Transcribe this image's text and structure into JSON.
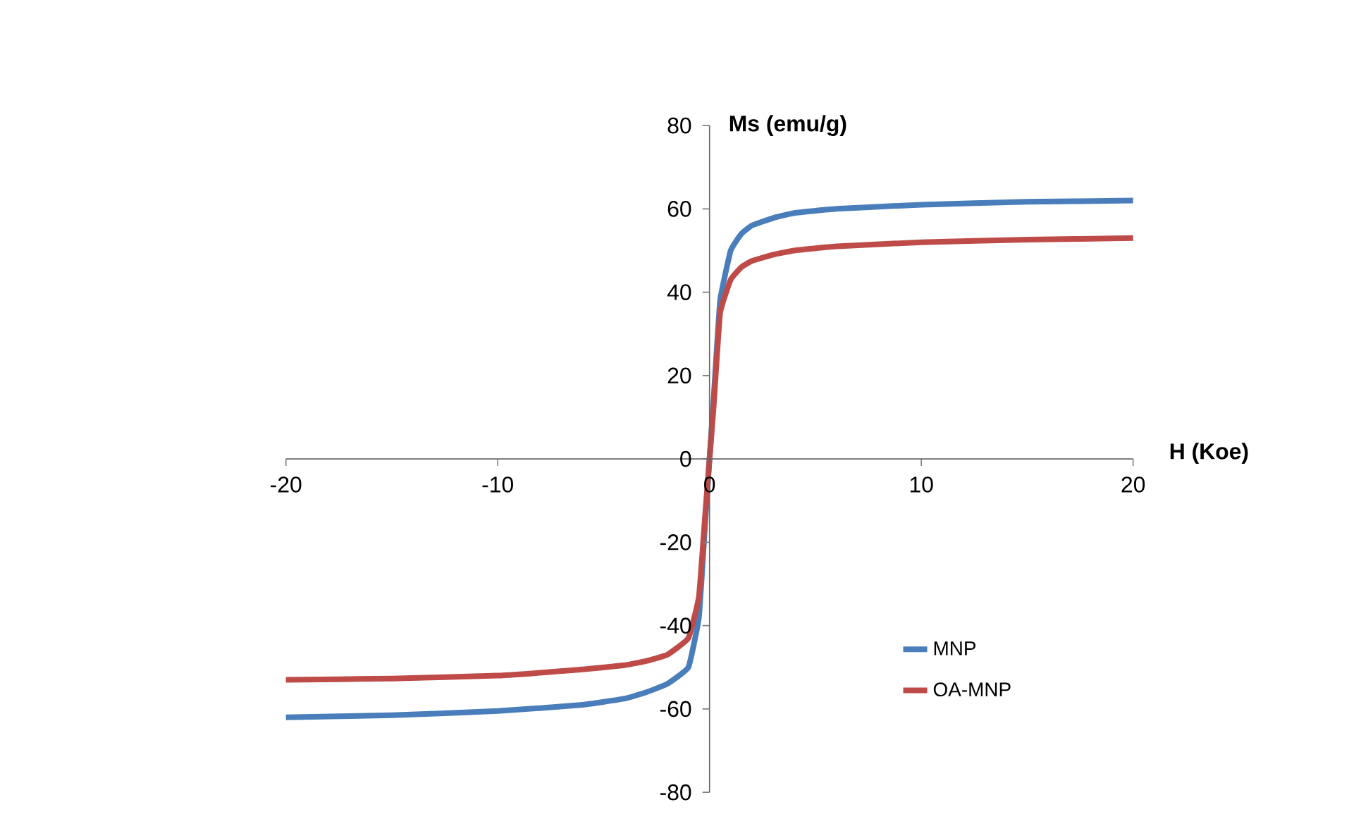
{
  "chart_data": {
    "type": "line",
    "xlabel": "H (Koe)",
    "ylabel": "Ms (emu/g)",
    "x": [
      -20,
      -15,
      -10,
      -6,
      -4,
      -3,
      -2,
      -1,
      -0.5,
      -0.2,
      0,
      0.2,
      0.5,
      1,
      1.5,
      2,
      3,
      4,
      6,
      10,
      15,
      20
    ],
    "series": [
      {
        "name": "MNP",
        "color": "#4a7ebb",
        "values": [
          -62,
          -61.5,
          -60.5,
          -59,
          -57.5,
          -56,
          -54,
          -50,
          -38,
          -15,
          0,
          15,
          38,
          50,
          54,
          56,
          57.8,
          59,
          60,
          61,
          61.7,
          62
        ]
      },
      {
        "name": "OA-MNP",
        "color": "#be4b48",
        "values": [
          -53,
          -52.7,
          -52,
          -50.5,
          -49.5,
          -48.5,
          -47,
          -43,
          -33,
          -13,
          0,
          13,
          35,
          43,
          46,
          47.5,
          49,
          50,
          51,
          52,
          52.6,
          53
        ]
      }
    ],
    "xlim": [
      -20,
      20
    ],
    "ylim": [
      -80,
      80
    ],
    "xticks": [
      -20,
      -10,
      0,
      10,
      20
    ],
    "yticks": [
      -80,
      -60,
      -40,
      -20,
      0,
      20,
      40,
      60,
      80
    ],
    "grid": false,
    "legend": "bottom right",
    "marker": "none",
    "line_style": "solid"
  }
}
